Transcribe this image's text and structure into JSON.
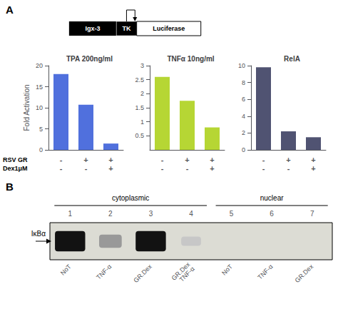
{
  "chart_data": [
    {
      "type": "bar",
      "title": "TPA 200ng/ml",
      "ylabel": "Fold Activation",
      "categories": [
        "-\n-",
        "+\n-",
        "+\n+"
      ],
      "values": [
        18,
        10.7,
        1.5
      ],
      "ylim": [
        0,
        20
      ],
      "yticks": [
        0,
        5,
        10,
        15,
        20
      ],
      "grid": false,
      "annotations": [
        "A",
        "Igx-3",
        "TK",
        "Luciferase",
        "RSV GR",
        "Dex1μM"
      ]
    },
    {
      "type": "bar",
      "title": "TNFα 10ng/ml",
      "categories": [
        "-\n-",
        "+\n-",
        "+\n+"
      ],
      "values": [
        2.6,
        1.75,
        0.8
      ],
      "ylim": [
        0,
        3
      ],
      "yticks": [
        0.5,
        1,
        1.5,
        2,
        2.5,
        3
      ],
      "grid": false
    },
    {
      "type": "bar",
      "title": "RelA",
      "categories": [
        "-\n-",
        "+\n-",
        "+\n+"
      ],
      "values": [
        9.8,
        2.2,
        1.5
      ],
      "ylim": [
        0,
        10
      ],
      "yticks": [
        0,
        2,
        4,
        6,
        8,
        10
      ],
      "grid": false
    },
    {
      "type": "blot",
      "ylabel": "IκBα",
      "categories": [
        "NoT",
        "TNF-α",
        "GR.Dex",
        "GR.Dex\nTNF-α",
        "NoT",
        "TNF-α",
        "GR.Dex"
      ],
      "lanes": [
        "1",
        "2",
        "3",
        "4",
        "5",
        "6",
        "7"
      ],
      "values": [
        1.0,
        0.28,
        0.95,
        0.15,
        0.0,
        0.0,
        0.0
      ],
      "color": "#dcdcd4",
      "annotations": [
        "B",
        "cytoplasmic",
        "nuclear"
      ]
    }
  ]
}
